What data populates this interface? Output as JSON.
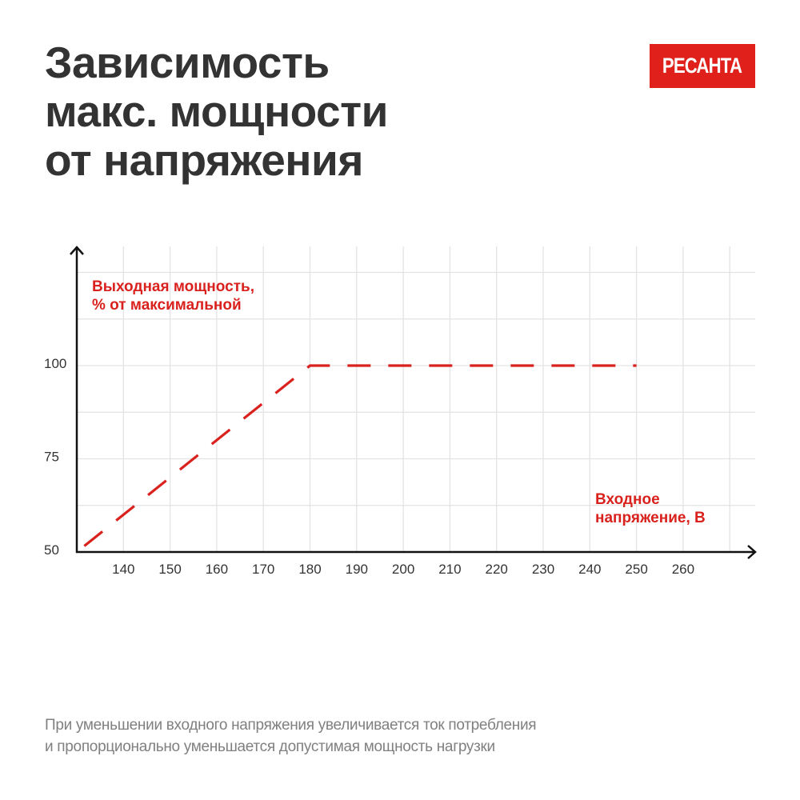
{
  "title": [
    "Зависимость",
    "макс. мощности",
    "от напряжения"
  ],
  "logo": {
    "text": "РЕСАНТА",
    "color": "#e0201b"
  },
  "footnote": [
    "При уменьшении входного напряжения увеличивается ток потребления",
    "и пропорционально уменьшается допустимая мощность нагрузки"
  ],
  "chart_data": {
    "type": "line",
    "ylabel": [
      "Выходная мощность,",
      "% от максимальной"
    ],
    "xlabel": [
      "Входное",
      "напряжение, В"
    ],
    "xlim": [
      130,
      270
    ],
    "ylim": [
      50,
      125
    ],
    "x_ticks": [
      140,
      150,
      160,
      170,
      180,
      190,
      200,
      210,
      220,
      230,
      240,
      250,
      260
    ],
    "y_ticks": [
      50,
      75,
      100
    ],
    "x_grid": [
      140,
      150,
      160,
      170,
      180,
      190,
      200,
      210,
      220,
      230,
      240,
      250,
      260,
      270
    ],
    "y_grid": [
      62.5,
      75,
      87.5,
      100,
      112.5,
      125
    ],
    "grid": true,
    "line_style": "dashed",
    "series": [
      {
        "points": [
          [
            130,
            50
          ],
          [
            180,
            100
          ],
          [
            250,
            100
          ]
        ],
        "color": "#d9211d"
      }
    ]
  }
}
